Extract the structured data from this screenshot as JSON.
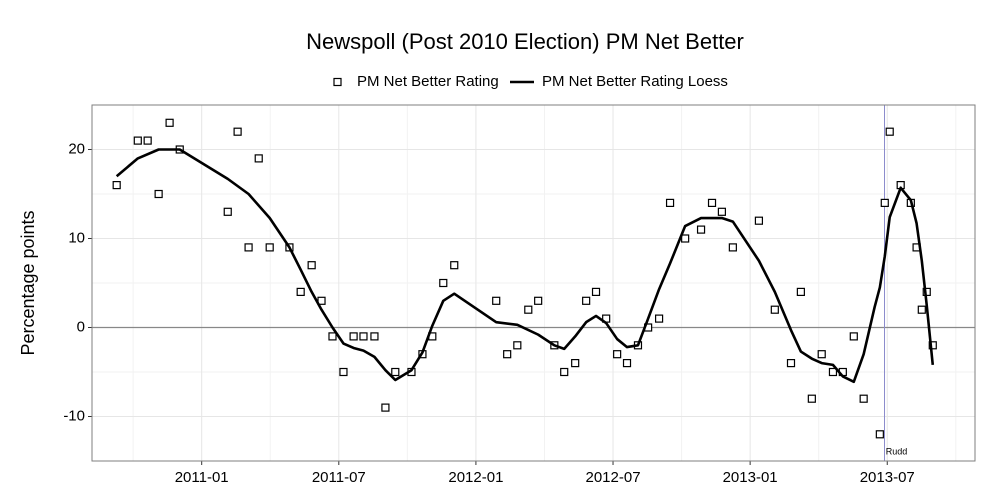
{
  "chart_data": {
    "type": "scatter",
    "title": "Newspoll (Post 2010 Election) PM Net Better",
    "y_label": "Percentage points",
    "xlim": [
      2010.6,
      2013.82
    ],
    "ylim": [
      -15,
      25
    ],
    "xticks": [
      {
        "value": 2011,
        "label": "2011-01"
      },
      {
        "value": 2011.5,
        "label": "2011-07"
      },
      {
        "value": 2012,
        "label": "2012-01"
      },
      {
        "value": 2012.5,
        "label": "2012-07"
      },
      {
        "value": 2013,
        "label": "2013-01"
      },
      {
        "value": 2013.5,
        "label": "2013-07"
      }
    ],
    "yticks": [
      -10,
      0,
      10,
      20
    ],
    "grid": true,
    "legend": "top",
    "reference_line_y": 0,
    "annotations": [
      {
        "text": "Rudd",
        "x": 2013.49,
        "y": -14,
        "color": "#8c8ccc"
      }
    ],
    "series": [
      {
        "name": "PM Net Better Rating",
        "type": "scatter",
        "color": "#000000",
        "x": [
          2010.69,
          2010.767,
          2010.803,
          2010.843,
          2010.883,
          2010.92,
          2011.095,
          2011.131,
          2011.171,
          2011.208,
          2011.248,
          2011.32,
          2011.361,
          2011.401,
          2011.437,
          2011.477,
          2011.517,
          2011.554,
          2011.59,
          2011.63,
          2011.67,
          2011.706,
          2011.765,
          2011.805,
          2011.841,
          2011.881,
          2011.921,
          2012.074,
          2012.114,
          2012.151,
          2012.191,
          2012.227,
          2012.286,
          2012.322,
          2012.362,
          2012.402,
          2012.438,
          2012.475,
          2012.515,
          2012.551,
          2012.591,
          2012.628,
          2012.668,
          2012.708,
          2012.763,
          2012.821,
          2012.861,
          2012.897,
          2012.937,
          2013.032,
          2013.09,
          2013.149,
          2013.185,
          2013.225,
          2013.261,
          2013.302,
          2013.338,
          2013.378,
          2013.414,
          2013.473,
          2013.491,
          2013.509,
          2013.549,
          2013.586,
          2013.607,
          2013.626,
          2013.644,
          2013.666
        ],
        "values": [
          16,
          21,
          21,
          15,
          23,
          20,
          13,
          22,
          9,
          19,
          9,
          9,
          4,
          7,
          3,
          -1,
          -5,
          -1,
          -1,
          -1,
          -9,
          -5,
          -5,
          -3,
          -1,
          5,
          7,
          3,
          -3,
          -2,
          2,
          3,
          -2,
          -5,
          -4,
          3,
          4,
          1,
          -3,
          -4,
          -2,
          0,
          1,
          14,
          10,
          11,
          14,
          13,
          9,
          12,
          2,
          -4,
          4,
          -8,
          -3,
          -5,
          -5,
          -1,
          -8,
          -12,
          14,
          22,
          16,
          14,
          9,
          2,
          4,
          -2
        ]
      },
      {
        "name": "PM Net Better Rating Loess",
        "type": "line",
        "color": "#000000",
        "x": [
          2010.69,
          2010.767,
          2010.843,
          2010.92,
          2011.095,
          2011.171,
          2011.248,
          2011.32,
          2011.361,
          2011.401,
          2011.437,
          2011.477,
          2011.517,
          2011.554,
          2011.59,
          2011.63,
          2011.67,
          2011.706,
          2011.765,
          2011.805,
          2011.841,
          2011.881,
          2011.921,
          2012.074,
          2012.151,
          2012.227,
          2012.286,
          2012.322,
          2012.362,
          2012.402,
          2012.438,
          2012.475,
          2012.515,
          2012.551,
          2012.591,
          2012.628,
          2012.668,
          2012.708,
          2012.763,
          2012.821,
          2012.861,
          2012.897,
          2012.937,
          2013.032,
          2013.09,
          2013.149,
          2013.185,
          2013.225,
          2013.261,
          2013.302,
          2013.338,
          2013.378,
          2013.414,
          2013.454,
          2013.473,
          2013.491,
          2013.509,
          2013.549,
          2013.586,
          2013.607,
          2013.626,
          2013.644,
          2013.666
        ],
        "values": [
          17,
          19,
          20,
          20,
          16.7,
          15,
          12.3,
          9,
          6.5,
          4,
          2,
          0,
          -1.8,
          -2.3,
          -2.6,
          -3.3,
          -4.8,
          -5.9,
          -4.8,
          -2.8,
          0.2,
          3,
          3.8,
          0.6,
          0.3,
          -0.8,
          -2,
          -2.4,
          -1,
          0.6,
          1.3,
          0.5,
          -1.3,
          -2.2,
          -2,
          1,
          4.3,
          7.2,
          11.4,
          12.3,
          12.3,
          12.3,
          11.9,
          7.5,
          4,
          -0.3,
          -2.7,
          -3.5,
          -4,
          -4.2,
          -5.5,
          -6.1,
          -3,
          2.3,
          4.5,
          8,
          12.4,
          15.7,
          14.3,
          11.7,
          7.5,
          2.5,
          -4.2
        ]
      }
    ]
  }
}
